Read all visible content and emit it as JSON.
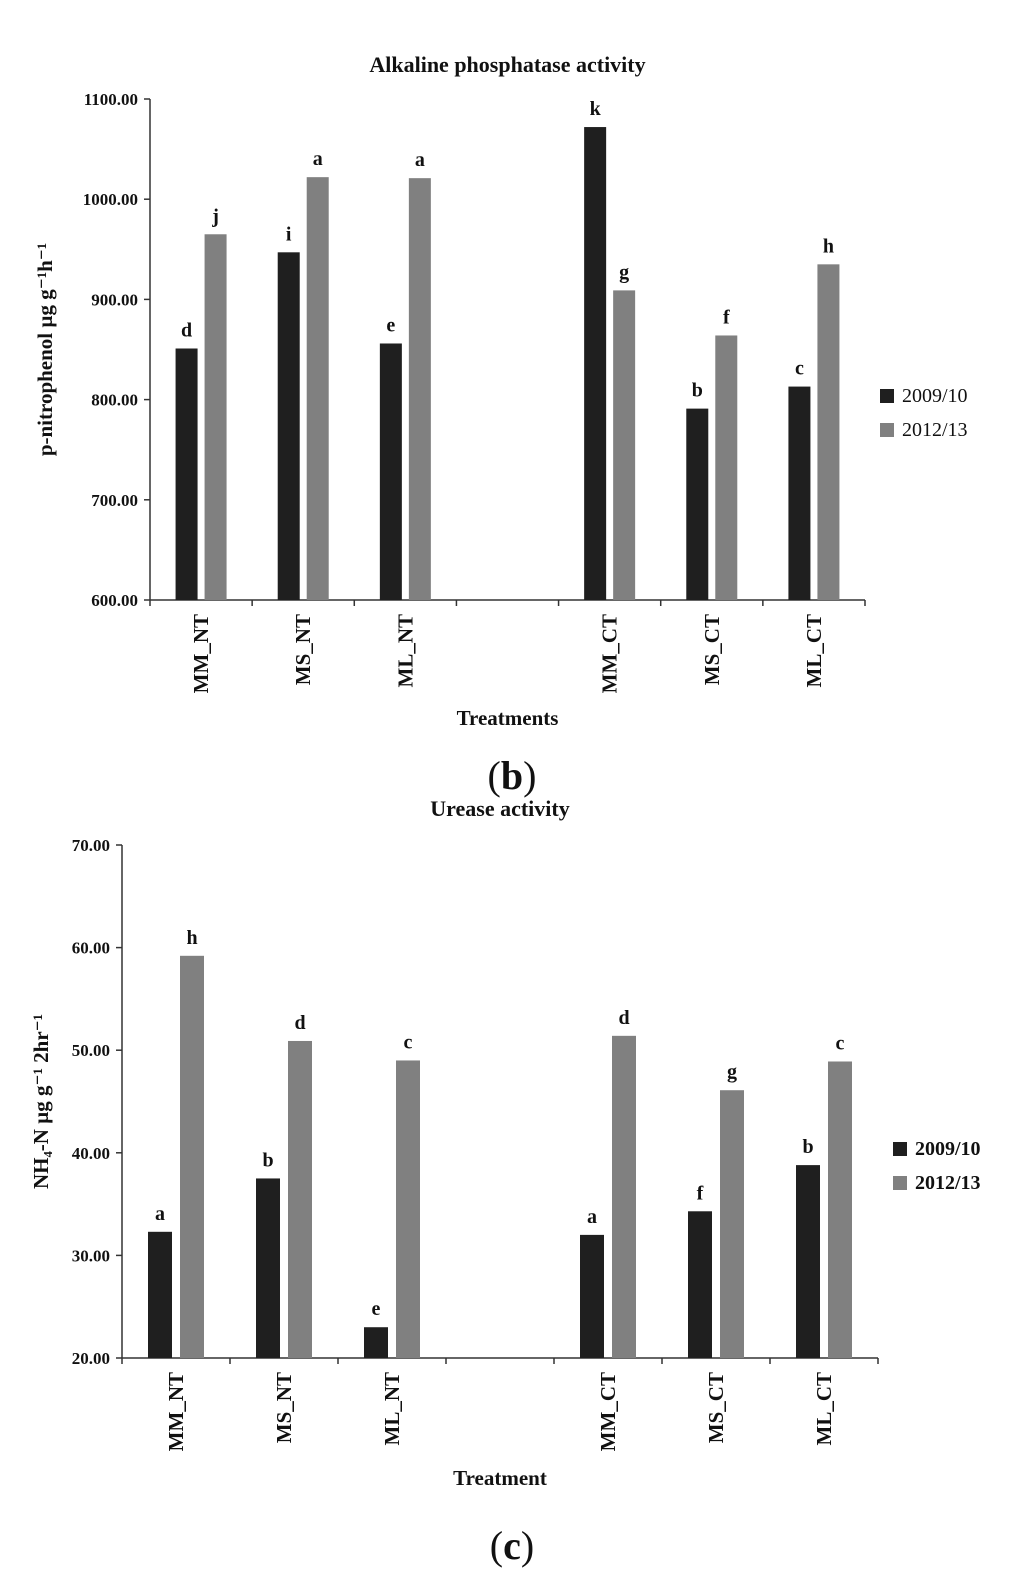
{
  "chart_data": [
    {
      "type": "bar",
      "title": "Alkaline phosphatase activity",
      "ylabel": "p-nitrophenol µg g⁻¹h⁻¹",
      "xlabel": "Treatments",
      "ylim": [
        600,
        1100
      ],
      "yticks": [
        600,
        700,
        800,
        900,
        1000,
        1100
      ],
      "ytick_labels": [
        "600.00",
        "700.00",
        "800.00",
        "900.00",
        "1000.00",
        "1100.00"
      ],
      "categories": [
        "MM_NT",
        "MS_NT",
        "ML_NT",
        "",
        "MM_CT",
        "MS_CT",
        "ML_CT"
      ],
      "series": [
        {
          "name": "2009/10",
          "color": "#1f1f1f",
          "values": [
            851,
            947,
            856,
            null,
            1072,
            791,
            813
          ],
          "labels": [
            "d",
            "i",
            "e",
            "",
            "k",
            "b",
            "c"
          ]
        },
        {
          "name": "2012/13",
          "color": "#808080",
          "values": [
            965,
            1022,
            1021,
            null,
            909,
            864,
            935
          ],
          "labels": [
            "j",
            "a",
            "a",
            "",
            "g",
            "f",
            "h"
          ]
        }
      ],
      "legend": "right",
      "grid": false
    },
    {
      "type": "bar",
      "title": "Urease activity",
      "ylabel": "NH₄-N µg g⁻¹ 2hr⁻¹",
      "xlabel": "Treatment",
      "ylim": [
        20,
        70
      ],
      "yticks": [
        20,
        30,
        40,
        50,
        60,
        70
      ],
      "ytick_labels": [
        "20.00",
        "30.00",
        "40.00",
        "50.00",
        "60.00",
        "70.00"
      ],
      "categories": [
        "MM_NT",
        "MS_NT",
        "ML_NT",
        "",
        "MM_CT",
        "MS_CT",
        "ML_CT"
      ],
      "series": [
        {
          "name": "2009/10",
          "color": "#1f1f1f",
          "values": [
            32.3,
            37.5,
            23.0,
            null,
            32.0,
            34.3,
            38.8
          ],
          "labels": [
            "a",
            "b",
            "e",
            "",
            "a",
            "f",
            "b"
          ]
        },
        {
          "name": "2012/13",
          "color": "#808080",
          "values": [
            59.2,
            50.9,
            49.0,
            null,
            51.4,
            46.1,
            48.9
          ],
          "labels": [
            "h",
            "d",
            "c",
            "",
            "d",
            "g",
            "c"
          ]
        }
      ],
      "legend": "right",
      "grid": false
    }
  ],
  "captions": {
    "panel_b": "b",
    "panel_c": "c"
  }
}
